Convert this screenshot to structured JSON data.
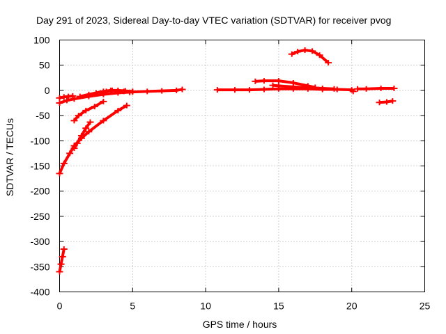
{
  "chart_data": {
    "type": "scatter",
    "title": "Day 291 of 2023, Sidereal Day-to-day VTEC variation (SDTVAR) for receiver pvog",
    "xlabel": "GPS time / hours",
    "ylabel": "SDTVAR / TECUs",
    "xlim": [
      0,
      25
    ],
    "ylim": [
      -400,
      100
    ],
    "x_ticks": [
      0,
      5,
      10,
      15,
      20,
      25
    ],
    "y_ticks": [
      100,
      50,
      0,
      -50,
      -100,
      -150,
      -200,
      -250,
      -300,
      -350,
      -400
    ],
    "grid": true,
    "marker": "plus",
    "color": "#ff0000",
    "series": [
      {
        "name": "s1",
        "points": [
          [
            0.0,
            -15
          ],
          [
            0.3,
            -13
          ],
          [
            0.6,
            -12
          ],
          [
            0.9,
            -11
          ]
        ]
      },
      {
        "name": "s2",
        "points": [
          [
            0.0,
            -25
          ],
          [
            0.5,
            -20
          ],
          [
            1.0,
            -17
          ],
          [
            2.0,
            -12
          ],
          [
            3.0,
            -8
          ],
          [
            4.0,
            -5
          ],
          [
            5.0,
            -3
          ],
          [
            6.0,
            -2
          ],
          [
            7.0,
            -1
          ],
          [
            8.0,
            0
          ],
          [
            8.4,
            2
          ]
        ]
      },
      {
        "name": "s3",
        "points": [
          [
            0.0,
            -165
          ],
          [
            0.3,
            -145
          ],
          [
            0.7,
            -125
          ],
          [
            1.0,
            -110
          ],
          [
            1.5,
            -95
          ],
          [
            2.0,
            -82
          ],
          [
            3.0,
            -60
          ],
          [
            4.0,
            -40
          ],
          [
            4.6,
            -30
          ]
        ]
      },
      {
        "name": "s4",
        "points": [
          [
            1.0,
            -115
          ],
          [
            1.2,
            -105
          ],
          [
            1.5,
            -90
          ],
          [
            1.8,
            -75
          ],
          [
            2.1,
            -63
          ]
        ]
      },
      {
        "name": "s5",
        "points": [
          [
            1.0,
            -60
          ],
          [
            1.3,
            -50
          ],
          [
            1.8,
            -40
          ],
          [
            2.4,
            -32
          ],
          [
            3.0,
            -22
          ]
        ]
      },
      {
        "name": "s6",
        "points": [
          [
            1.4,
            -12
          ],
          [
            2.0,
            -8
          ],
          [
            2.5,
            -5
          ],
          [
            3.0,
            -2
          ],
          [
            3.5,
            0
          ],
          [
            4.0,
            0
          ],
          [
            4.5,
            -1
          ],
          [
            5.0,
            -2
          ]
        ]
      },
      {
        "name": "s7",
        "points": [
          [
            2.8,
            -5
          ],
          [
            3.2,
            -2
          ],
          [
            3.6,
            0
          ],
          [
            4.0,
            -1
          ],
          [
            4.4,
            -2
          ],
          [
            4.8,
            -4
          ]
        ]
      },
      {
        "name": "s8",
        "points": [
          [
            0.0,
            -360
          ],
          [
            0.1,
            -345
          ],
          [
            0.2,
            -330
          ],
          [
            0.3,
            -315
          ]
        ]
      },
      {
        "name": "s9",
        "points": [
          [
            10.8,
            1
          ],
          [
            12.0,
            1
          ],
          [
            13.0,
            1
          ],
          [
            14.0,
            2
          ],
          [
            15.0,
            3
          ],
          [
            16.0,
            3
          ],
          [
            17.0,
            3
          ],
          [
            18.0,
            2
          ],
          [
            19.0,
            2
          ],
          [
            20.0,
            1
          ],
          [
            20.1,
            -2
          ]
        ]
      },
      {
        "name": "s10",
        "points": [
          [
            13.4,
            18
          ],
          [
            14.0,
            19
          ],
          [
            15.0,
            19
          ],
          [
            16.0,
            15
          ],
          [
            17.0,
            9
          ],
          [
            17.5,
            6
          ]
        ]
      },
      {
        "name": "s11",
        "points": [
          [
            14.6,
            10
          ],
          [
            15.0,
            9
          ],
          [
            16.0,
            7
          ],
          [
            17.0,
            5
          ],
          [
            18.0,
            4
          ],
          [
            18.8,
            3
          ]
        ]
      },
      {
        "name": "s12",
        "points": [
          [
            15.9,
            72
          ],
          [
            16.3,
            77
          ],
          [
            16.8,
            80
          ],
          [
            17.3,
            78
          ],
          [
            17.8,
            70
          ],
          [
            18.4,
            55
          ]
        ]
      },
      {
        "name": "s13",
        "points": [
          [
            20.4,
            3
          ],
          [
            21.0,
            3
          ],
          [
            22.0,
            4
          ],
          [
            22.9,
            4
          ]
        ]
      },
      {
        "name": "s14",
        "points": [
          [
            21.9,
            -24
          ],
          [
            22.4,
            -23
          ],
          [
            22.8,
            -21
          ]
        ]
      }
    ]
  }
}
